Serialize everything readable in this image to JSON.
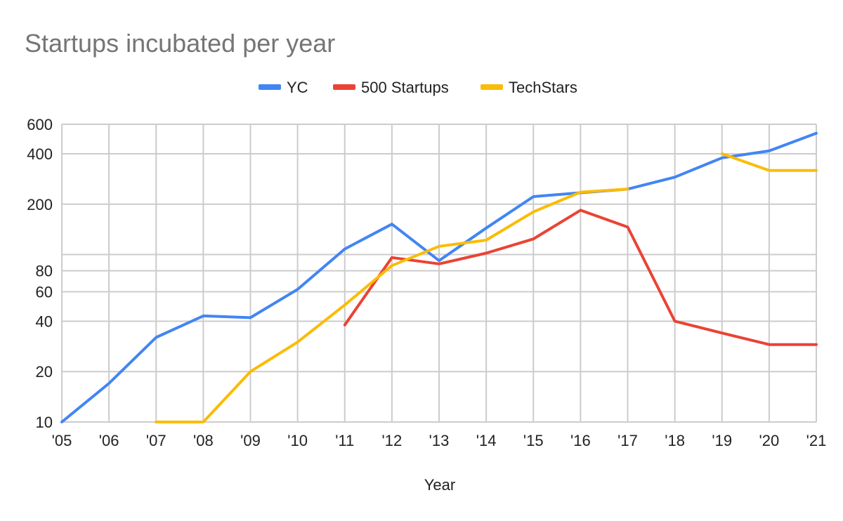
{
  "chart_data": {
    "type": "line",
    "title": "Startups incubated per year",
    "xlabel": "Year",
    "ylabel": "",
    "yscale": "log",
    "legend_position": "top",
    "grid": true,
    "categories": [
      "'05",
      "'06",
      "'07",
      "'08",
      "'09",
      "'10",
      "'11",
      "'12",
      "'13",
      "'14",
      "'15",
      "'16",
      "'17",
      "'18",
      "'19",
      "'20",
      "'21"
    ],
    "ylim": [
      10,
      600
    ],
    "y_ticks": [
      10,
      20,
      40,
      60,
      80,
      200,
      400,
      600
    ],
    "y_gridlines": [
      10,
      20,
      40,
      60,
      80,
      100,
      200,
      400,
      600
    ],
    "series": [
      {
        "name": "YC",
        "color": "#4285F4",
        "values": [
          10,
          17,
          32,
          43,
          42,
          62,
          108,
          152,
          92,
          144,
          222,
          234,
          246,
          290,
          378,
          416,
          530
        ]
      },
      {
        "name": "500 Startups",
        "color": "#EA4335",
        "values": [
          null,
          null,
          null,
          null,
          null,
          null,
          38,
          96,
          88,
          102,
          124,
          184,
          146,
          40,
          34,
          29,
          29
        ]
      },
      {
        "name": "TechStars",
        "color": "#FBBC04",
        "values": [
          null,
          null,
          10,
          10,
          20,
          30,
          50,
          86,
          112,
          122,
          180,
          236,
          246,
          null,
          400,
          318,
          318
        ]
      }
    ]
  }
}
